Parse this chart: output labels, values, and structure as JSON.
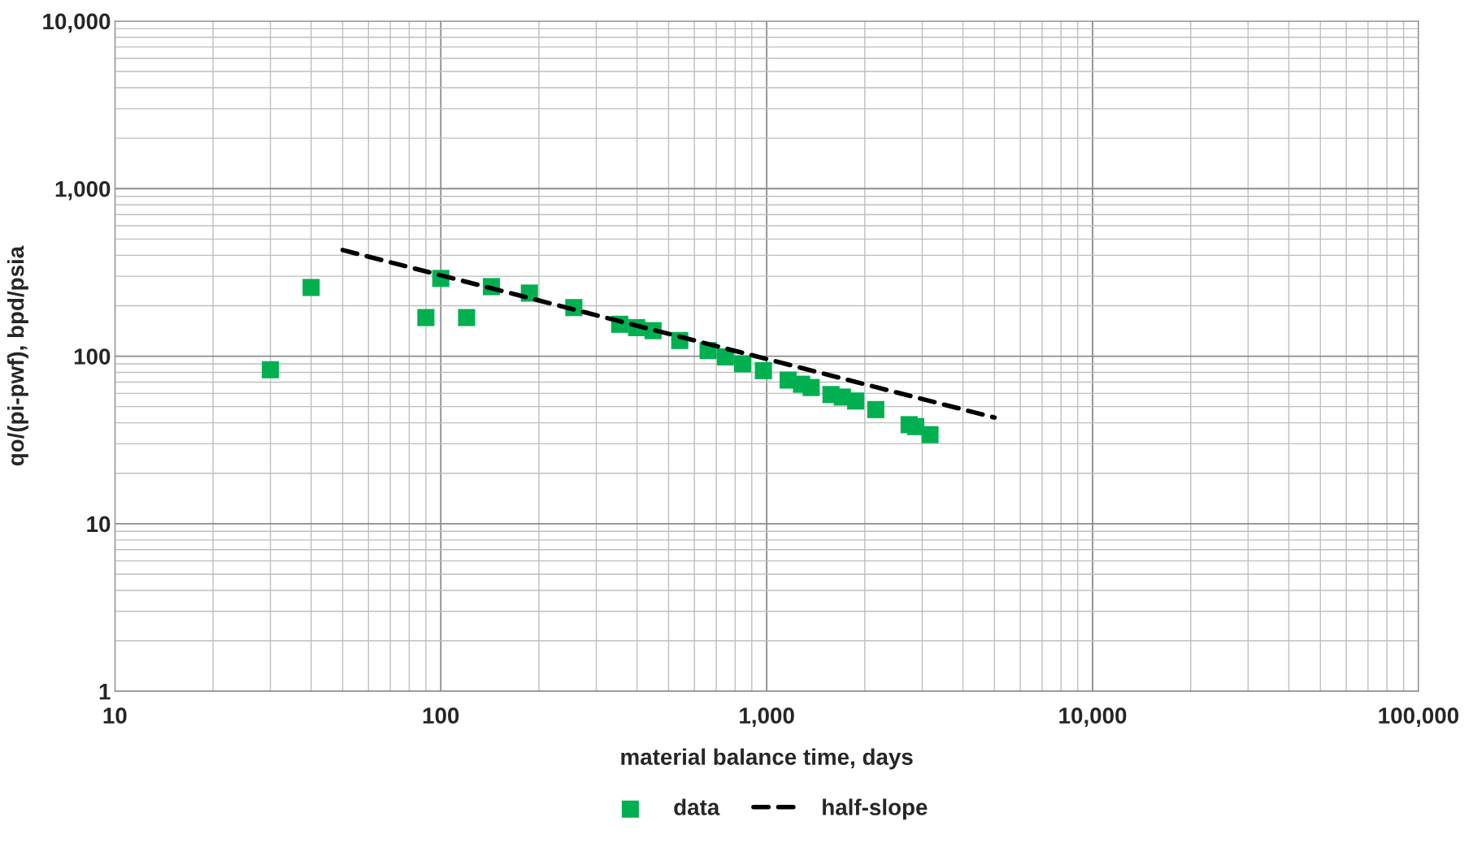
{
  "chart_data": {
    "type": "scatter",
    "xlabel": "material balance time, days",
    "ylabel": "qo/(pi-pwf), bpd/psia",
    "log": "xy",
    "grid": true,
    "legend": "bottom",
    "xlim": [
      10,
      100000
    ],
    "xticks": [
      {
        "value": 10,
        "label": "10"
      },
      {
        "value": 100,
        "label": "100"
      },
      {
        "value": 1000,
        "label": "1,000"
      },
      {
        "value": 10000,
        "label": "10,000"
      },
      {
        "value": 100000,
        "label": "100,000"
      }
    ],
    "ylim": [
      1,
      10000
    ],
    "yticks": [
      {
        "value": 1,
        "label": "1"
      },
      {
        "value": 10,
        "label": "10"
      },
      {
        "value": 100,
        "label": "100"
      },
      {
        "value": 1000,
        "label": "1,000"
      },
      {
        "value": 10000,
        "label": "10,000"
      }
    ],
    "series": [
      {
        "name": "data",
        "color": "#00b050",
        "marker": "square",
        "x": [
          30,
          40,
          90,
          100,
          120,
          143,
          187,
          256,
          354,
          399,
          448,
          541,
          661,
          747,
          843,
          977,
          1164,
          1279,
          1369,
          1575,
          1707,
          1875,
          2161,
          2735,
          2866,
          3170
        ],
        "values": [
          83,
          257,
          170,
          291,
          170,
          260,
          238,
          195,
          155,
          148,
          142,
          124,
          108,
          99,
          90,
          82,
          72,
          68,
          65,
          59,
          57,
          54,
          48,
          39,
          38,
          34
        ]
      },
      {
        "name": "half-slope",
        "type": "line",
        "color": "#000000",
        "line_style": "dashed",
        "marker": "none",
        "x": [
          50,
          5000
        ],
        "values": [
          430,
          43
        ]
      }
    ]
  }
}
